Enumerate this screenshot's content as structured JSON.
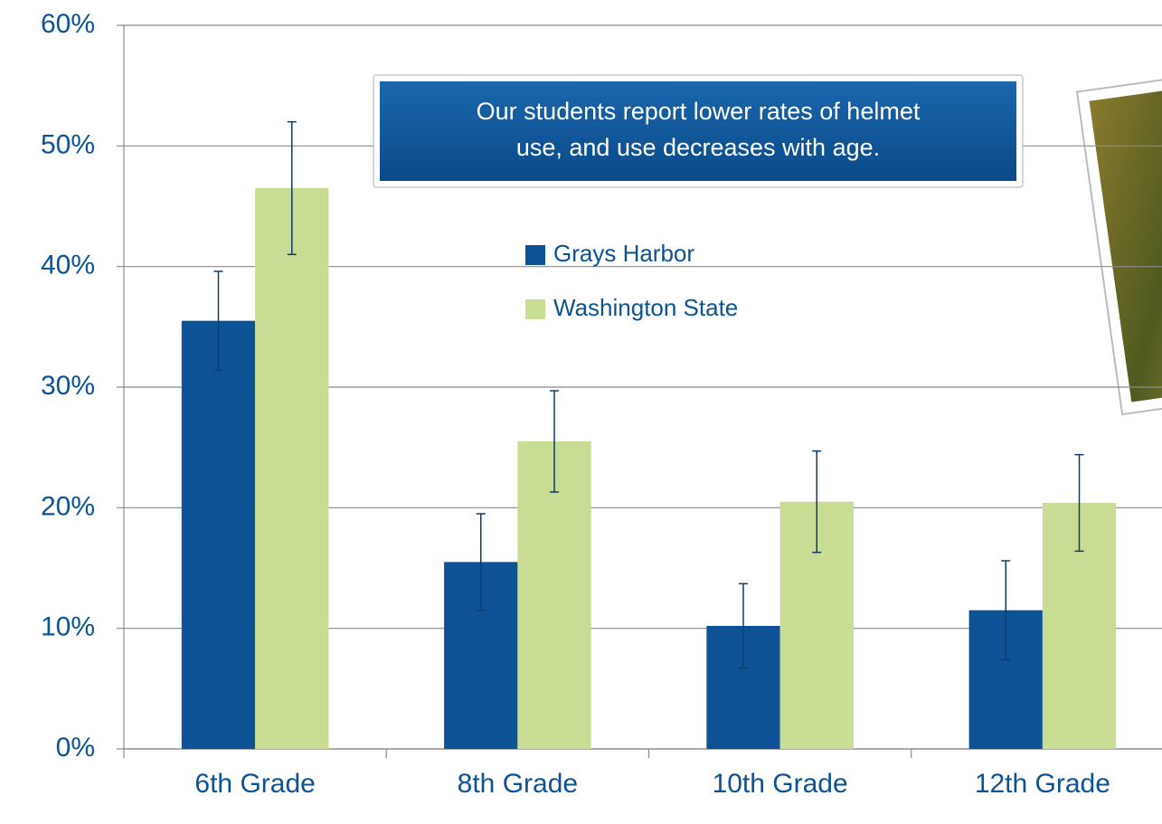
{
  "chart_data": {
    "type": "bar",
    "annotation": [
      "Our students report lower rates of helmet",
      "use, and use decreases with age."
    ],
    "categories": [
      "6th Grade",
      "8th Grade",
      "10th Grade",
      "12th Grade"
    ],
    "series": [
      {
        "name": "Grays Harbor",
        "color": "#0d5294",
        "values": [
          35.5,
          15.5,
          10.2,
          11.5
        ],
        "errors": [
          4.1,
          4,
          3.5,
          4.1
        ]
      },
      {
        "name": "Washington State",
        "color": "#c9dc93",
        "values": [
          46.5,
          25.5,
          20.5,
          20.4
        ],
        "errors": [
          5.5,
          4.2,
          4.2,
          4
        ]
      }
    ],
    "ylim": [
      0,
      60
    ],
    "yticks": [
      {
        "value": 0,
        "label": "0%"
      },
      {
        "value": 10,
        "label": "10%"
      },
      {
        "value": 20,
        "label": "20%"
      },
      {
        "value": 30,
        "label": "30%"
      },
      {
        "value": 40,
        "label": "40%"
      },
      {
        "value": 50,
        "label": "50%"
      },
      {
        "value": 60,
        "label": "60%"
      }
    ],
    "grid": true
  }
}
